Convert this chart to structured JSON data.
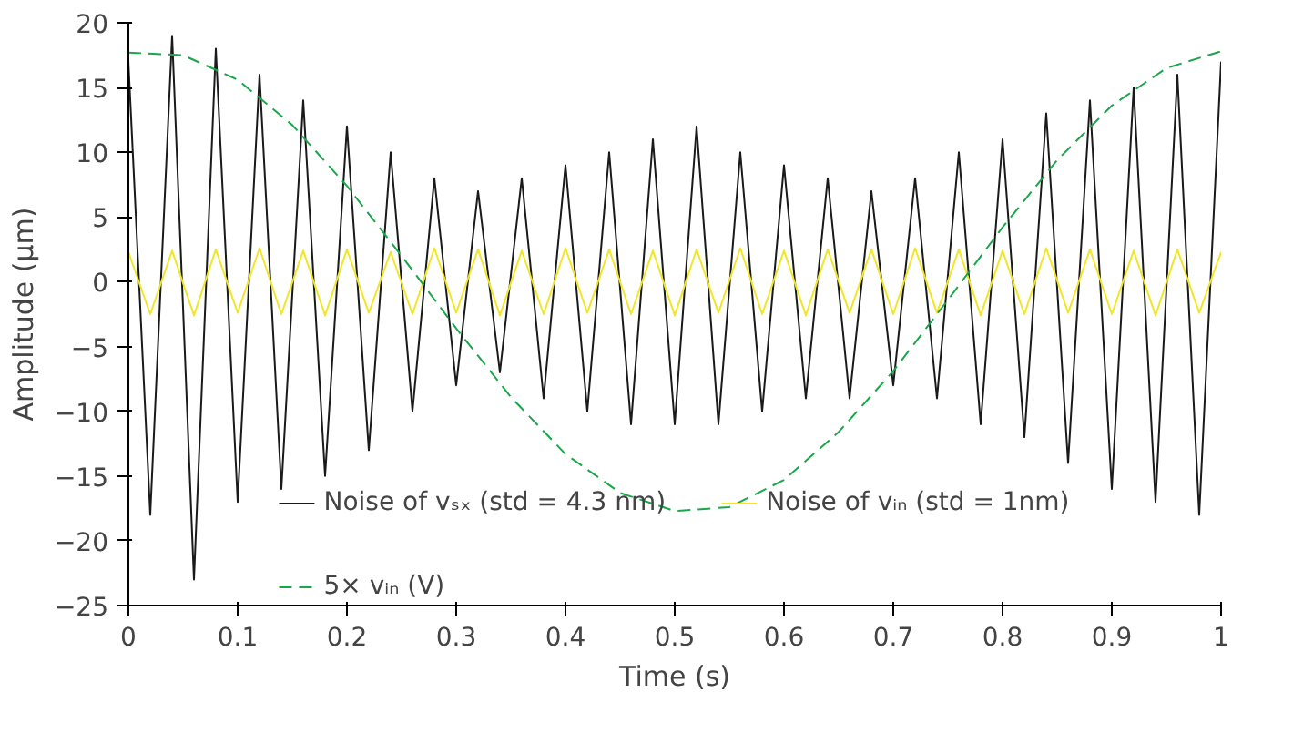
{
  "chart_data": {
    "type": "line",
    "xlabel": "Time (s)",
    "ylabel": "Amplitude (μm)",
    "xlim": [
      0,
      1
    ],
    "ylim": [
      -25,
      20
    ],
    "xticks": [
      0,
      0.1,
      0.2,
      0.3,
      0.4,
      0.5,
      0.6,
      0.7,
      0.8,
      0.9,
      1
    ],
    "yticks": [
      -25,
      -20,
      -15,
      -10,
      -5,
      0,
      5,
      10,
      15,
      20
    ],
    "grid": false,
    "legend": "bottom",
    "marker": "none",
    "series": [
      {
        "name": "Noise of vₛₓ (std = 4.3 nm)",
        "color": "#1a1a1a",
        "line_style": "solid",
        "x": [
          0,
          0.02,
          0.04,
          0.06,
          0.08,
          0.1,
          0.12,
          0.14,
          0.16,
          0.18,
          0.2,
          0.22,
          0.24,
          0.26,
          0.28,
          0.3,
          0.32,
          0.34,
          0.36,
          0.38,
          0.4,
          0.42,
          0.44,
          0.46,
          0.48,
          0.5,
          0.52,
          0.54,
          0.56,
          0.58,
          0.6,
          0.62,
          0.64,
          0.66,
          0.68,
          0.7,
          0.72,
          0.74,
          0.76,
          0.78,
          0.8,
          0.82,
          0.84,
          0.86,
          0.88,
          0.9,
          0.92,
          0.94,
          0.96,
          0.98,
          1
        ],
        "values": [
          17,
          -18,
          19,
          -23,
          18,
          -17,
          16,
          -16,
          14,
          -15,
          12,
          -13,
          10,
          -10,
          8,
          -8,
          7,
          -7,
          8,
          -9,
          9,
          -10,
          10,
          -11,
          11,
          -11,
          12,
          -11,
          10,
          -10,
          9,
          -9,
          8,
          -9,
          7,
          -8,
          8,
          -9,
          10,
          -11,
          11,
          -12,
          13,
          -14,
          14,
          -16,
          15,
          -17,
          16,
          -18,
          17
        ]
      },
      {
        "name": "Noise of vᵢₙ (std = 1nm)",
        "color": "#f2e629",
        "line_style": "solid",
        "x": [
          0,
          0.02,
          0.04,
          0.06,
          0.08,
          0.1,
          0.12,
          0.14,
          0.16,
          0.18,
          0.2,
          0.22,
          0.24,
          0.26,
          0.28,
          0.3,
          0.32,
          0.34,
          0.36,
          0.38,
          0.4,
          0.42,
          0.44,
          0.46,
          0.48,
          0.5,
          0.52,
          0.54,
          0.56,
          0.58,
          0.6,
          0.62,
          0.64,
          0.66,
          0.68,
          0.7,
          0.72,
          0.74,
          0.76,
          0.78,
          0.8,
          0.82,
          0.84,
          0.86,
          0.88,
          0.9,
          0.92,
          0.94,
          0.96,
          0.98,
          1
        ],
        "values": [
          2.3,
          -2.5,
          2.4,
          -2.6,
          2.5,
          -2.4,
          2.6,
          -2.5,
          2.4,
          -2.6,
          2.5,
          -2.4,
          2.3,
          -2.5,
          2.6,
          -2.4,
          2.5,
          -2.6,
          2.4,
          -2.5,
          2.6,
          -2.4,
          2.5,
          -2.5,
          2.4,
          -2.6,
          2.5,
          -2.4,
          2.6,
          -2.5,
          2.4,
          -2.6,
          2.5,
          -2.4,
          2.5,
          -2.5,
          2.6,
          -2.4,
          2.5,
          -2.6,
          2.4,
          -2.5,
          2.6,
          -2.4,
          2.5,
          -2.5,
          2.4,
          -2.6,
          2.5,
          -2.4,
          2.3
        ]
      },
      {
        "name": "5× vᵢₙ (V)",
        "color": "#1aa64a",
        "line_style": "dashed",
        "x": [
          0,
          0.05,
          0.1,
          0.15,
          0.2,
          0.25,
          0.3,
          0.35,
          0.4,
          0.45,
          0.5,
          0.55,
          0.6,
          0.65,
          0.7,
          0.75,
          0.8,
          0.85,
          0.9,
          0.95,
          1
        ],
        "values": [
          17.7,
          17.5,
          15.6,
          12.1,
          7.4,
          2.0,
          -3.6,
          -8.9,
          -13.3,
          -16.3,
          -17.7,
          -17.4,
          -15.3,
          -11.6,
          -6.9,
          -1.4,
          4.2,
          9.4,
          13.6,
          16.5,
          17.8
        ]
      }
    ]
  }
}
